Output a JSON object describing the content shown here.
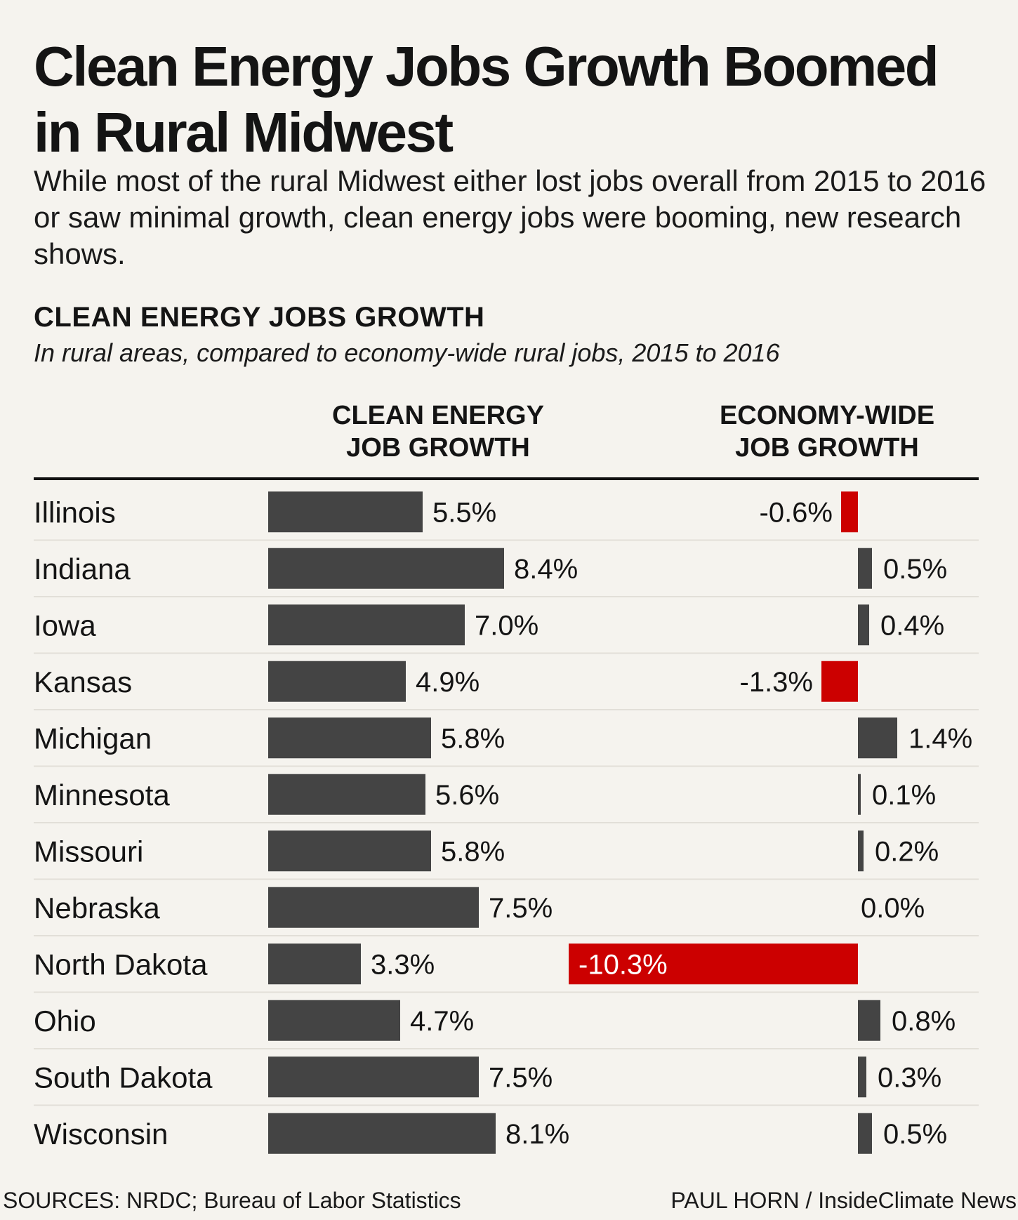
{
  "header": {
    "title": "Clean Energy Jobs Growth Boomed in Rural Midwest",
    "subtitle": "While most of the rural Midwest either lost jobs overall from 2015 to 2016 or saw minimal growth, clean energy jobs were booming, new research shows."
  },
  "chart_data": {
    "type": "bar",
    "title": "CLEAN ENERGY JOBS GROWTH",
    "subtitle": "In rural areas, compared to economy-wide rural jobs, 2015 to 2016",
    "categories": [
      "Illinois",
      "Indiana",
      "Iowa",
      "Kansas",
      "Michigan",
      "Minnesota",
      "Missouri",
      "Nebraska",
      "North Dakota",
      "Ohio",
      "South Dakota",
      "Wisconsin"
    ],
    "series": [
      {
        "name": "CLEAN ENERGY JOB GROWTH",
        "values": [
          5.5,
          8.4,
          7.0,
          4.9,
          5.8,
          5.6,
          5.8,
          7.5,
          3.3,
          4.7,
          7.5,
          8.1
        ],
        "labels": [
          "5.5%",
          "8.4%",
          "7.0%",
          "4.9%",
          "5.8%",
          "5.6%",
          "5.8%",
          "7.5%",
          "3.3%",
          "4.7%",
          "7.5%",
          "8.1%"
        ]
      },
      {
        "name": "ECONOMY-WIDE JOB GROWTH",
        "values": [
          -0.6,
          0.5,
          0.4,
          -1.3,
          1.4,
          0.1,
          0.2,
          0.0,
          -10.3,
          0.8,
          0.3,
          0.5
        ],
        "labels": [
          "-0.6%",
          "0.5%",
          "0.4%",
          "-1.3%",
          "1.4%",
          "0.1%",
          "0.2%",
          "0.0%",
          "-10.3%",
          "0.8%",
          "0.3%",
          "0.5%"
        ]
      }
    ],
    "column_headers": [
      [
        "CLEAN ENERGY",
        "JOB GROWTH"
      ],
      [
        "ECONOMY-WIDE",
        "JOB GROWTH"
      ]
    ],
    "colors": {
      "positive": "#444444",
      "negative": "#cc0000",
      "rule": "#111111",
      "row_divider": "#e2dfd8"
    }
  },
  "footer": {
    "sources": "SOURCES: NRDC; Bureau of Labor Statistics",
    "credit": "PAUL HORN / InsideClimate News"
  }
}
